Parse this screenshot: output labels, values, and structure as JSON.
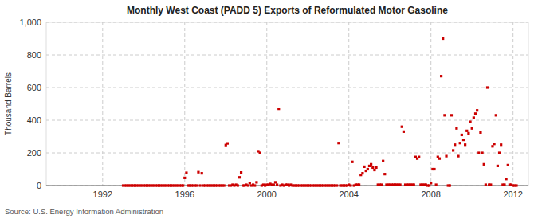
{
  "chart_data": {
    "type": "scatter",
    "title": "Monthly West Coast (PADD 5) Exports of Reformulated Motor Gasoline",
    "ylabel": "Thousand Barrels",
    "source": "Source: U.S. Energy Information Administration",
    "xlim": [
      1989.25,
      2012.75
    ],
    "ylim": [
      0,
      1000
    ],
    "xticks": [
      1992,
      1996,
      2000,
      2004,
      2008,
      2012
    ],
    "yticks": [
      0,
      200,
      400,
      600,
      800,
      {
        "value": 1000,
        "label": "1,000"
      }
    ],
    "grid": true,
    "color": "#cc0000",
    "marker": "square",
    "x": [
      1993.0,
      1993.083,
      1993.167,
      1993.25,
      1993.333,
      1993.417,
      1993.5,
      1993.583,
      1993.667,
      1993.75,
      1993.833,
      1993.917,
      1994.0,
      1994.083,
      1994.167,
      1994.25,
      1994.333,
      1994.417,
      1994.5,
      1994.583,
      1994.667,
      1994.75,
      1994.833,
      1994.917,
      1995.0,
      1995.083,
      1995.167,
      1995.25,
      1995.333,
      1995.417,
      1995.5,
      1995.583,
      1995.667,
      1995.75,
      1995.833,
      1995.917,
      1996.0,
      1996.083,
      1996.167,
      1996.25,
      1996.333,
      1996.417,
      1996.5,
      1996.583,
      1996.667,
      1996.75,
      1996.833,
      1996.917,
      1997.0,
      1997.083,
      1997.167,
      1997.25,
      1997.333,
      1997.417,
      1997.5,
      1997.583,
      1997.667,
      1997.75,
      1997.833,
      1997.917,
      1998.0,
      1998.083,
      1998.167,
      1998.25,
      1998.333,
      1998.417,
      1998.5,
      1998.583,
      1998.667,
      1998.75,
      1998.833,
      1998.917,
      1999.0,
      1999.083,
      1999.167,
      1999.25,
      1999.333,
      1999.417,
      1999.5,
      1999.583,
      1999.667,
      1999.75,
      1999.833,
      1999.917,
      2000.0,
      2000.083,
      2000.167,
      2000.25,
      2000.333,
      2000.417,
      2000.5,
      2000.583,
      2000.667,
      2000.75,
      2000.833,
      2000.917,
      2001.0,
      2001.083,
      2001.167,
      2001.25,
      2001.333,
      2001.417,
      2001.5,
      2001.583,
      2001.667,
      2001.75,
      2001.833,
      2001.917,
      2002.0,
      2002.083,
      2002.167,
      2002.25,
      2002.333,
      2002.417,
      2002.5,
      2002.583,
      2002.667,
      2002.75,
      2002.833,
      2002.917,
      2003.0,
      2003.083,
      2003.167,
      2003.25,
      2003.333,
      2003.417,
      2003.5,
      2003.583,
      2003.667,
      2003.75,
      2003.833,
      2003.917,
      2004.0,
      2004.083,
      2004.167,
      2004.25,
      2004.333,
      2004.417,
      2004.5,
      2004.583,
      2004.667,
      2004.75,
      2004.833,
      2004.917,
      2005.0,
      2005.083,
      2005.167,
      2005.25,
      2005.333,
      2005.417,
      2005.5,
      2005.583,
      2005.667,
      2005.75,
      2005.833,
      2005.917,
      2006.0,
      2006.083,
      2006.167,
      2006.25,
      2006.333,
      2006.417,
      2006.5,
      2006.583,
      2006.667,
      2006.75,
      2006.833,
      2006.917,
      2007.0,
      2007.083,
      2007.167,
      2007.25,
      2007.333,
      2007.417,
      2007.5,
      2007.583,
      2007.667,
      2007.75,
      2007.833,
      2007.917,
      2008.0,
      2008.083,
      2008.167,
      2008.25,
      2008.333,
      2008.417,
      2008.5,
      2008.583,
      2008.667,
      2008.75,
      2008.833,
      2008.917,
      2009.0,
      2009.083,
      2009.167,
      2009.25,
      2009.333,
      2009.417,
      2009.5,
      2009.583,
      2009.667,
      2009.75,
      2009.833,
      2009.917,
      2010.0,
      2010.083,
      2010.167,
      2010.25,
      2010.333,
      2010.417,
      2010.5,
      2010.583,
      2010.667,
      2010.75,
      2010.833,
      2010.917,
      2011.0,
      2011.083,
      2011.167,
      2011.25,
      2011.333,
      2011.417,
      2011.5,
      2011.583,
      2011.667,
      2011.75,
      2011.833,
      2011.917,
      2012.0,
      2012.083,
      2012.167
    ],
    "values": [
      0,
      0,
      0,
      0,
      0,
      0,
      0,
      0,
      0,
      0,
      0,
      0,
      0,
      0,
      0,
      0,
      0,
      0,
      0,
      0,
      0,
      0,
      0,
      0,
      0,
      0,
      0,
      0,
      0,
      0,
      0,
      0,
      0,
      0,
      0,
      0,
      47,
      78,
      0,
      0,
      0,
      0,
      0,
      0,
      82,
      0,
      75,
      0,
      0,
      0,
      0,
      0,
      0,
      0,
      0,
      0,
      0,
      0,
      0,
      0,
      248,
      258,
      0,
      0,
      5,
      0,
      5,
      0,
      50,
      80,
      0,
      0,
      5,
      0,
      15,
      0,
      5,
      0,
      20,
      210,
      200,
      0,
      5,
      0,
      5,
      5,
      10,
      5,
      5,
      20,
      5,
      470,
      0,
      5,
      0,
      5,
      5,
      0,
      5,
      0,
      0,
      0,
      0,
      0,
      0,
      0,
      0,
      0,
      0,
      0,
      0,
      0,
      0,
      0,
      0,
      0,
      0,
      0,
      0,
      0,
      0,
      0,
      0,
      0,
      0,
      0,
      260,
      0,
      0,
      0,
      0,
      0,
      5,
      0,
      145,
      0,
      5,
      5,
      5,
      65,
      75,
      115,
      90,
      100,
      120,
      130,
      110,
      95,
      110,
      5,
      5,
      5,
      150,
      70,
      5,
      5,
      5,
      5,
      5,
      5,
      5,
      5,
      5,
      360,
      330,
      5,
      5,
      5,
      5,
      5,
      5,
      175,
      165,
      175,
      5,
      5,
      5,
      5,
      0,
      0,
      15,
      100,
      100,
      5,
      175,
      165,
      670,
      900,
      430,
      180,
      0,
      0,
      430,
      215,
      250,
      350,
      180,
      260,
      310,
      280,
      250,
      335,
      320,
      390,
      350,
      415,
      440,
      460,
      200,
      325,
      200,
      130,
      5,
      600,
      5,
      5,
      240,
      255,
      430,
      120,
      200,
      250,
      5,
      5,
      40,
      125,
      5,
      5,
      0,
      0,
      0
    ]
  }
}
